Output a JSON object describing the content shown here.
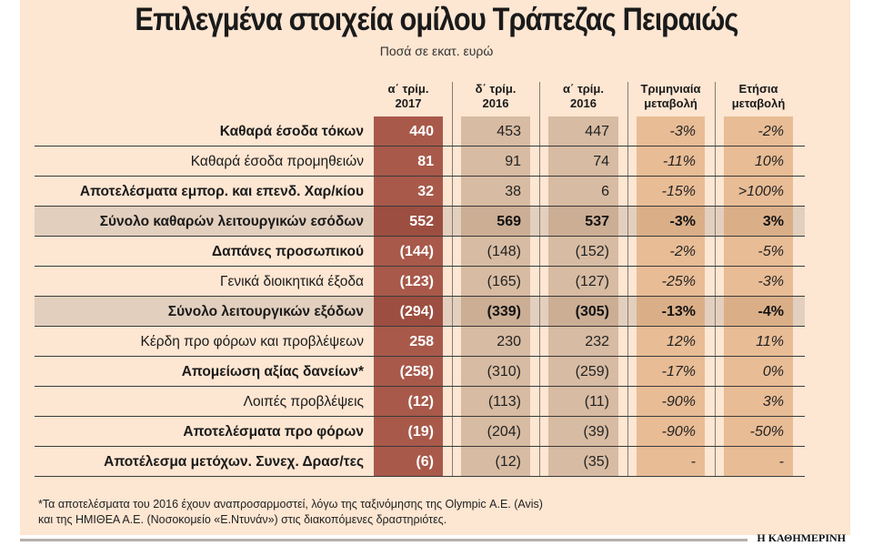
{
  "title": "Επιλεγμένα στοιχεία ομίλου Τράπεζας Πειραιώς",
  "subtitle": "Ποσά σε εκατ. ευρώ",
  "colors": {
    "background": "#fde6d2",
    "col_2017": "#a8594a",
    "col_2016": "#d7bba2",
    "col_change": "#e8bc95",
    "total_band": "#e2cfbe"
  },
  "chart_data": {
    "type": "table",
    "columns": [
      {
        "line1": "α΄ τρίμ.",
        "line2": "2017"
      },
      {
        "line1": "δ΄ τρίμ.",
        "line2": "2016"
      },
      {
        "line1": "α΄ τρίμ.",
        "line2": "2016"
      },
      {
        "line1": "Τριμηνιαία",
        "line2": "μεταβολή"
      },
      {
        "line1": "Ετήσια",
        "line2": "μεταβολή"
      }
    ],
    "rows": [
      {
        "label": "Καθαρά έσοδα τόκων",
        "bold": true,
        "total": false,
        "values": [
          "440",
          "453",
          "447",
          "-3%",
          "-2%"
        ]
      },
      {
        "label": "Καθαρά έσοδα προμηθειών",
        "bold": false,
        "total": false,
        "values": [
          "81",
          "91",
          "74",
          "-11%",
          "10%"
        ]
      },
      {
        "label": "Αποτελέσματα εμπορ. και επενδ. Χαρ/κίου",
        "bold": true,
        "total": false,
        "values": [
          "32",
          "38",
          "6",
          "-15%",
          ">100%"
        ]
      },
      {
        "label": "Σύνολο καθαρών λειτουργικών εσόδων",
        "bold": true,
        "total": true,
        "values": [
          "552",
          "569",
          "537",
          "-3%",
          "3%"
        ]
      },
      {
        "label": "Δαπάνες προσωπικού",
        "bold": true,
        "total": false,
        "values": [
          "(144)",
          "(148)",
          "(152)",
          "-2%",
          "-5%"
        ]
      },
      {
        "label": "Γενικά διοικητικά έξοδα",
        "bold": false,
        "total": false,
        "values": [
          "(123)",
          "(165)",
          "(127)",
          "-25%",
          "-3%"
        ]
      },
      {
        "label": "Σύνολο λειτουργικών εξόδων",
        "bold": true,
        "total": true,
        "values": [
          "(294)",
          "(339)",
          "(305)",
          "-13%",
          "-4%"
        ]
      },
      {
        "label": "Κέρδη προ φόρων και προβλέψεων",
        "bold": false,
        "total": false,
        "values": [
          "258",
          "230",
          "232",
          "12%",
          "11%"
        ]
      },
      {
        "label": "Απομείωση αξίας δανείων*",
        "bold": true,
        "total": false,
        "values": [
          "(258)",
          "(310)",
          "(259)",
          "-17%",
          "0%"
        ]
      },
      {
        "label": "Λοιπές προβλέψεις",
        "bold": false,
        "total": false,
        "values": [
          "(12)",
          "(113)",
          "(11)",
          "-90%",
          "3%"
        ]
      },
      {
        "label": "Αποτελέσματα προ φόρων",
        "bold": true,
        "total": false,
        "values": [
          "(19)",
          "(204)",
          "(39)",
          "-90%",
          "-50%"
        ]
      },
      {
        "label": "Αποτέλεσμα μετόχων. Συνεχ. Δρασ/τες",
        "bold": true,
        "total": false,
        "values": [
          "(6)",
          "(12)",
          "(35)",
          "-",
          "-"
        ]
      }
    ]
  },
  "footnote": {
    "line1": "*Τα αποτελέσματα του 2016 έχουν αναπροσαρμοστεί, λόγω της ταξινόμησης της Olympic Α.Ε. (Avis)",
    "line2": "και της ΗΜΙΘΕΑ Α.Ε. (Νοσοκομείο «Ε.Ντυνάν») στις διακοπόμενες δραστηριότες."
  },
  "brand": "Η ΚΑΘΗΜΕΡΙΝΗ"
}
